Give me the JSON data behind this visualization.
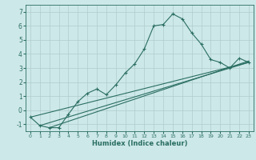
{
  "xlabel": "Humidex (Indice chaleur)",
  "bg_color": "#cde8e8",
  "line_color": "#2a6e62",
  "grid_color": "#b0cccc",
  "xlim": [
    -0.5,
    23.5
  ],
  "ylim": [
    -1.5,
    7.5
  ],
  "yticks": [
    -1,
    0,
    1,
    2,
    3,
    4,
    5,
    6,
    7
  ],
  "xticks": [
    0,
    1,
    2,
    3,
    4,
    5,
    6,
    7,
    8,
    9,
    10,
    11,
    12,
    13,
    14,
    15,
    16,
    17,
    18,
    19,
    20,
    21,
    22,
    23
  ],
  "main_x": [
    0,
    1,
    2,
    3,
    4,
    5,
    6,
    7,
    8,
    9,
    10,
    11,
    12,
    13,
    14,
    15,
    16,
    17,
    18,
    19,
    20,
    21,
    22,
    23
  ],
  "main_y": [
    -0.5,
    -1.1,
    -1.25,
    -1.25,
    -0.3,
    0.6,
    1.2,
    1.5,
    1.1,
    1.8,
    2.65,
    3.3,
    4.35,
    6.0,
    6.1,
    6.85,
    6.5,
    5.5,
    4.7,
    3.6,
    3.4,
    3.0,
    3.7,
    3.4
  ],
  "line2_x": [
    0,
    23
  ],
  "line2_y": [
    -0.5,
    3.4
  ],
  "line3_x": [
    1,
    23
  ],
  "line3_y": [
    -1.1,
    3.4
  ],
  "line4_x": [
    2,
    23
  ],
  "line4_y": [
    -1.25,
    3.5
  ]
}
